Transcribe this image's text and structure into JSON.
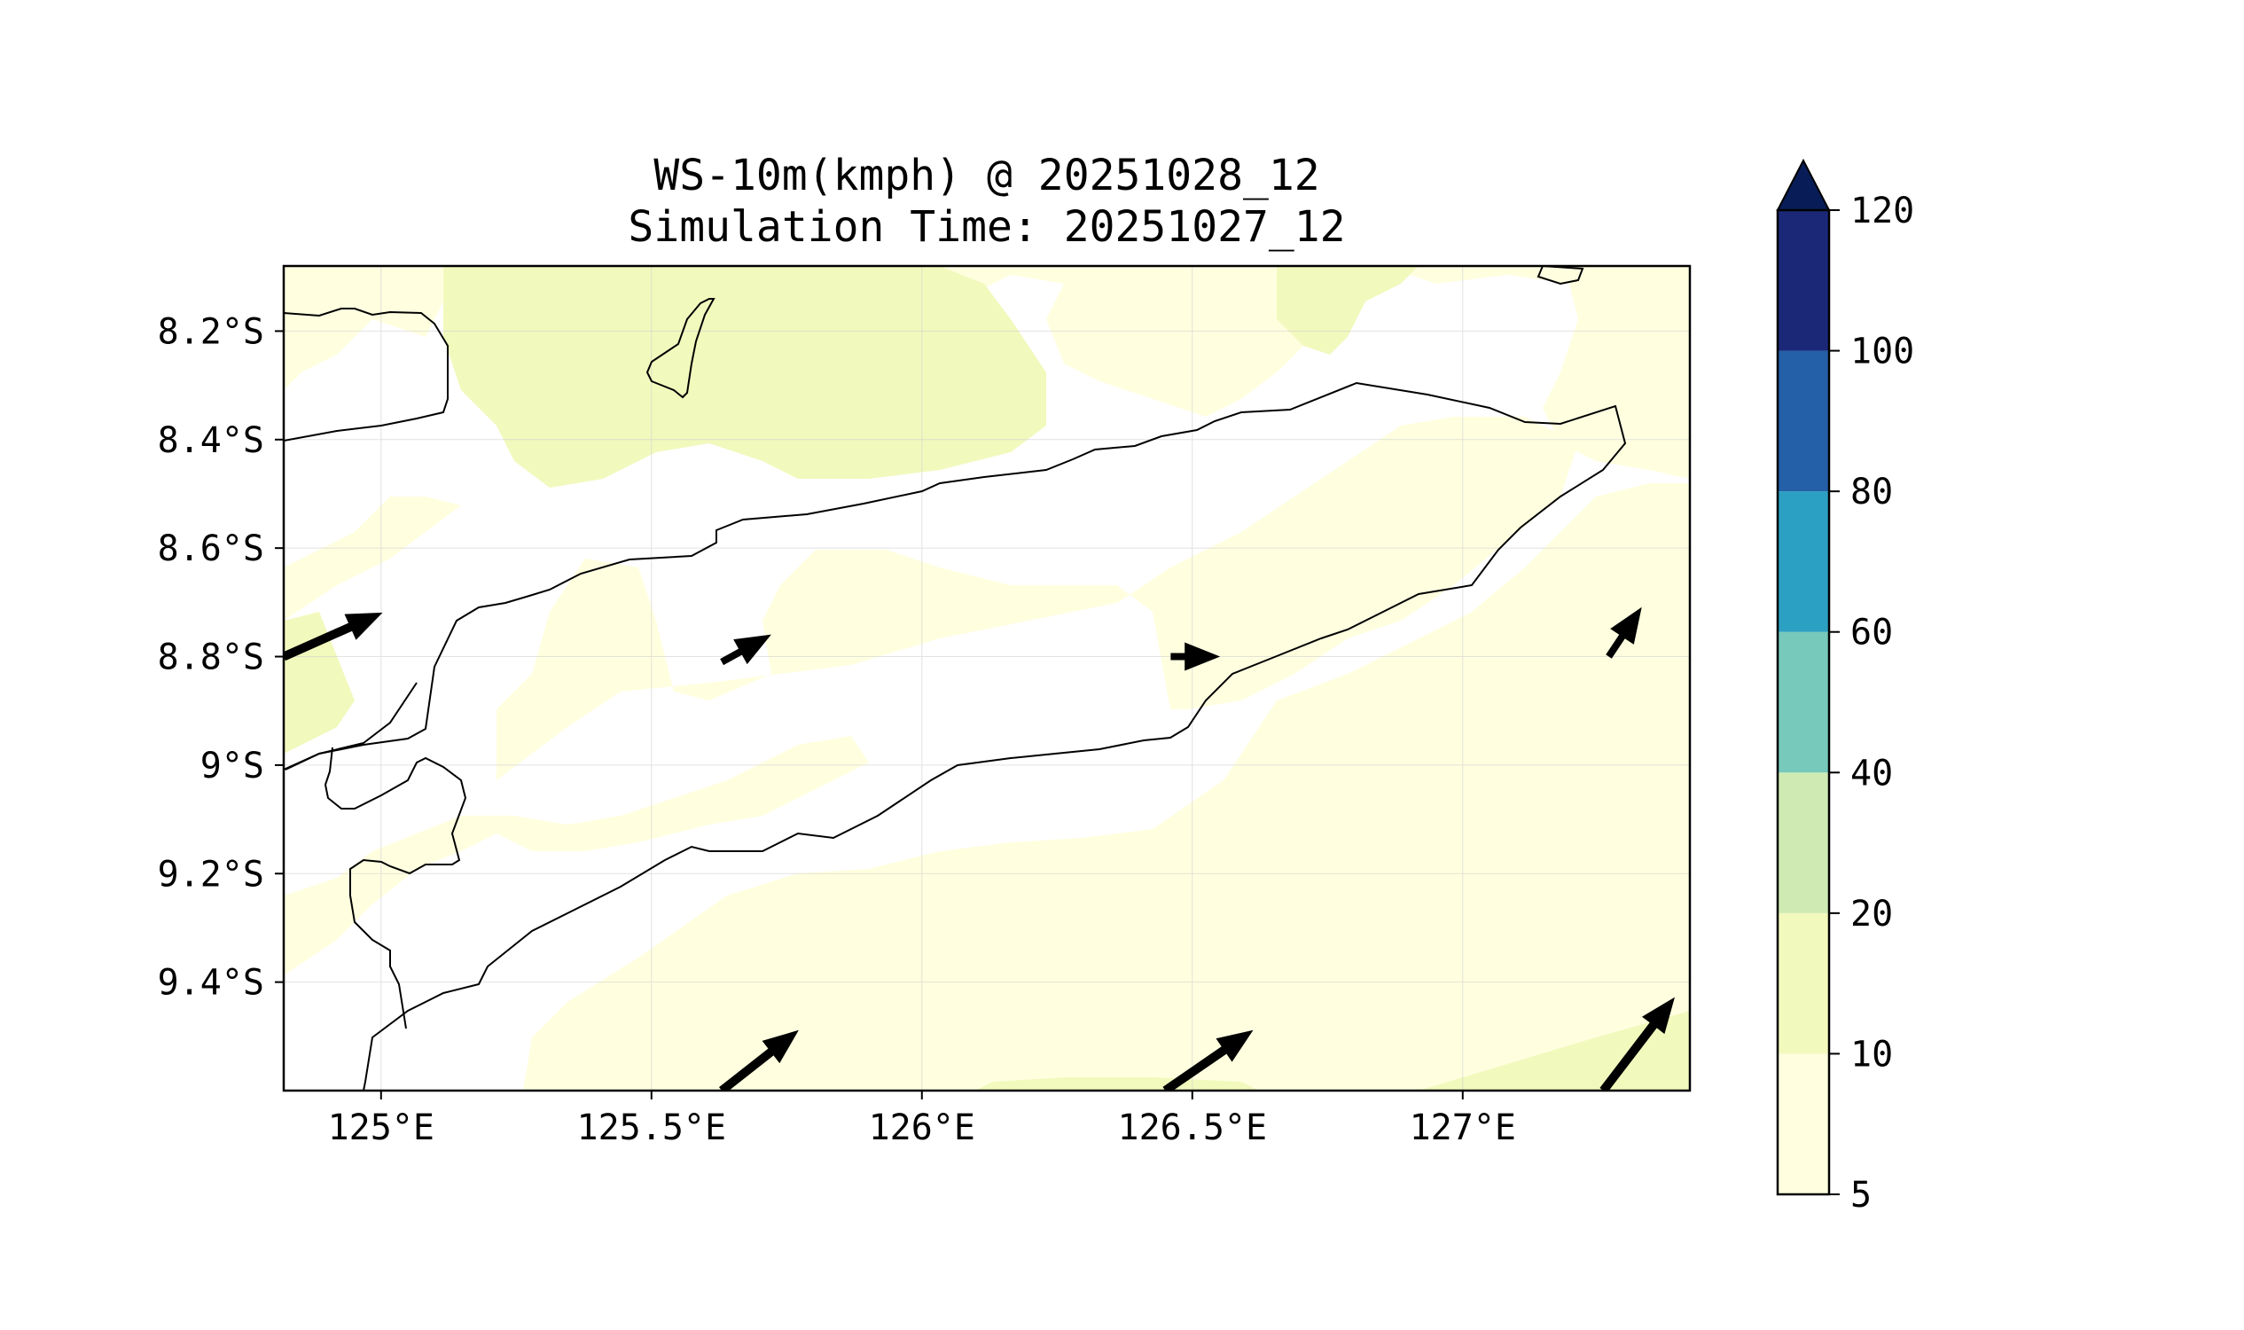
{
  "title": {
    "line1": "WS-10m(kmph) @ 20251028_12",
    "line2": "Simulation Time: 20251027_12"
  },
  "map": {
    "lon_range": [
      124.82,
      127.42
    ],
    "lat_range": [
      -9.6,
      -8.08
    ],
    "lon_ticks": [
      {
        "value": 125.0,
        "label": "125°E"
      },
      {
        "value": 125.5,
        "label": "125.5°E"
      },
      {
        "value": 126.0,
        "label": "126°E"
      },
      {
        "value": 126.5,
        "label": "126.5°E"
      },
      {
        "value": 127.0,
        "label": "127°E"
      }
    ],
    "lat_ticks": [
      {
        "value": -8.2,
        "label": "8.2°S"
      },
      {
        "value": -8.4,
        "label": "8.4°S"
      },
      {
        "value": -8.6,
        "label": "8.6°S"
      },
      {
        "value": -8.8,
        "label": "8.8°S"
      },
      {
        "value": -9.0,
        "label": "9°S"
      },
      {
        "value": -9.2,
        "label": "9.2°S"
      },
      {
        "value": -9.4,
        "label": "9.4°S"
      }
    ],
    "grid": true
  },
  "colorbar": {
    "levels": [
      {
        "from": 5,
        "to": 10,
        "color": "#ffffe0"
      },
      {
        "from": 10,
        "to": 20,
        "color": "#f2f9bd"
      },
      {
        "from": 20,
        "to": 40,
        "color": "#cfebb3"
      },
      {
        "from": 40,
        "to": 60,
        "color": "#76c9bb"
      },
      {
        "from": 60,
        "to": 80,
        "color": "#2ca0c2"
      },
      {
        "from": 80,
        "to": 100,
        "color": "#2460a8"
      },
      {
        "from": 100,
        "to": 120,
        "color": "#1b2878"
      }
    ],
    "extend_color": "#081d58",
    "labels": [
      "5",
      "10",
      "20",
      "40",
      "60",
      "80",
      "100",
      "120"
    ]
  },
  "wind_vectors": [
    {
      "lon": 124.82,
      "lat": -8.8,
      "u": 1.8,
      "v": 0.8,
      "speed": "strong"
    },
    {
      "lon": 125.63,
      "lat": -8.81,
      "u": 0.9,
      "v": 0.5,
      "speed": "weak"
    },
    {
      "lon": 126.46,
      "lat": -8.8,
      "u": 0.9,
      "v": 0.0,
      "speed": "weak"
    },
    {
      "lon": 127.27,
      "lat": -8.8,
      "u": 0.6,
      "v": 0.9,
      "speed": "weak"
    },
    {
      "lon": 125.63,
      "lat": -9.6,
      "u": 1.4,
      "v": 1.1,
      "speed": "strong"
    },
    {
      "lon": 126.45,
      "lat": -9.6,
      "u": 1.6,
      "v": 1.1,
      "speed": "strong"
    },
    {
      "lon": 127.26,
      "lat": -9.6,
      "u": 1.3,
      "v": 1.7,
      "speed": "strong"
    }
  ]
}
